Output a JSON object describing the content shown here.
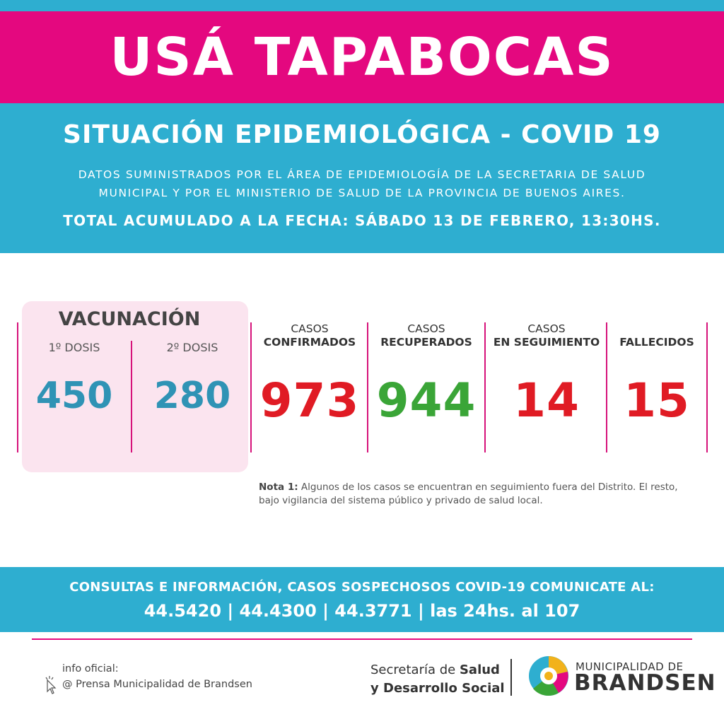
{
  "banner": {
    "title": "USÁ TAPABOCAS"
  },
  "header": {
    "title": "SITUACIÓN EPIDEMIOLÓGICA - COVID 19",
    "subtitle_line1": "DATOS SUMINISTRADOS POR EL ÁREA DE EPIDEMIOLOGÍA DE LA SECRETARIA DE SALUD",
    "subtitle_line2": "MUNICIPAL Y POR EL MINISTERIO DE SALUD DE LA PROVINCIA DE BUENOS AIRES.",
    "date_line": "TOTAL ACUMULADO A LA FECHA: SÁBADO 13 DE FEBRERO, 13:30HS."
  },
  "vaccination": {
    "title": "VACUNACIÓN",
    "dose1_label": "1º DOSIS",
    "dose1_value": "450",
    "dose2_label": "2º DOSIS",
    "dose2_value": "280"
  },
  "cases": {
    "confirmed": {
      "label_top": "CASOS",
      "label_bottom": "CONFIRMADOS",
      "value": "973"
    },
    "recovered": {
      "label_top": "CASOS",
      "label_bottom": "RECUPERADOS",
      "value": "944"
    },
    "monitoring": {
      "label_top": "CASOS",
      "label_bottom": "EN SEGUIMIENTO",
      "value": "14"
    },
    "deceased": {
      "label_top": "",
      "label_bottom": "FALLECIDOS",
      "value": "15"
    }
  },
  "note": {
    "label": "Nota 1:",
    "line1": " Algunos de los casos se encuentran en seguimiento fuera del Distrito. El resto,",
    "line2": "bajo vigilancia del sistema público y privado de salud local."
  },
  "footer": {
    "line1": "CONSULTAS E INFORMACIÓN, CASOS SOSPECHOSOS COVID-19 COMUNICATE AL:",
    "line2": "44.5420 | 44.4300 | 44.3771 | las 24hs. al 107"
  },
  "bottom": {
    "info_label": "info oficial:",
    "info_handle": "@ Prensa Municipalidad de Brandsen",
    "secretaria_1a": "Secretaría de ",
    "secretaria_1b": "Salud",
    "secretaria_2": "y Desarrollo Social",
    "muni_top": "MUNICIPALIDAD DE",
    "muni_bottom": "BRANDSEN"
  },
  "colors": {
    "pink": "#e4087f",
    "blue": "#2eaed0",
    "red": "#e01b24",
    "green": "#3aa537",
    "vaccine_blue": "#2f93b5"
  }
}
